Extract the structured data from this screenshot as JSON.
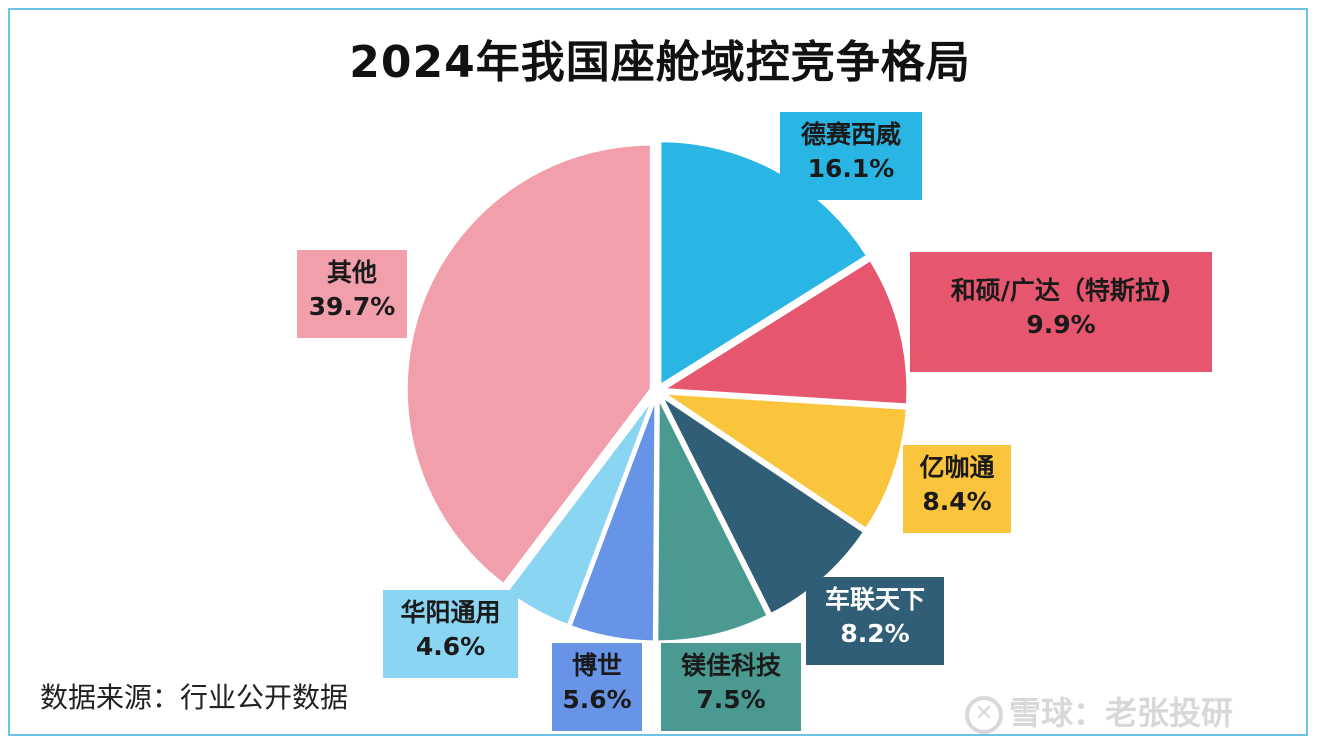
{
  "title": "2024年我国座舱域控竞争格局",
  "source": "数据来源：行业公开数据",
  "watermark": "雪球：老张投研",
  "watermark_icon": "snowball-logo-icon",
  "chart_data": {
    "type": "pie",
    "title": "2024年我国座舱域控竞争格局",
    "unit": "%",
    "slices": [
      {
        "name": "德赛西威",
        "value": 16.1,
        "label": "16.1%",
        "color": "#29b6e5"
      },
      {
        "name": "和硕/广达（特斯拉)",
        "value": 9.9,
        "label": "9.9%",
        "color": "#e6566e"
      },
      {
        "name": "亿咖通",
        "value": 8.4,
        "label": "8.4%",
        "color": "#fbc43d"
      },
      {
        "name": "车联天下",
        "value": 8.2,
        "label": "8.2%",
        "color": "#2f5e76"
      },
      {
        "name": "镁佳科技",
        "value": 7.5,
        "label": "7.5%",
        "color": "#4a9a92"
      },
      {
        "name": "博世",
        "value": 5.6,
        "label": "5.6%",
        "color": "#6894e8"
      },
      {
        "name": "华阳通用",
        "value": 4.6,
        "label": "4.6%",
        "color": "#8ad5f2"
      },
      {
        "name": "其他",
        "value": 39.7,
        "label": "39.7%",
        "color": "#f09fab"
      }
    ],
    "legend": "none"
  }
}
